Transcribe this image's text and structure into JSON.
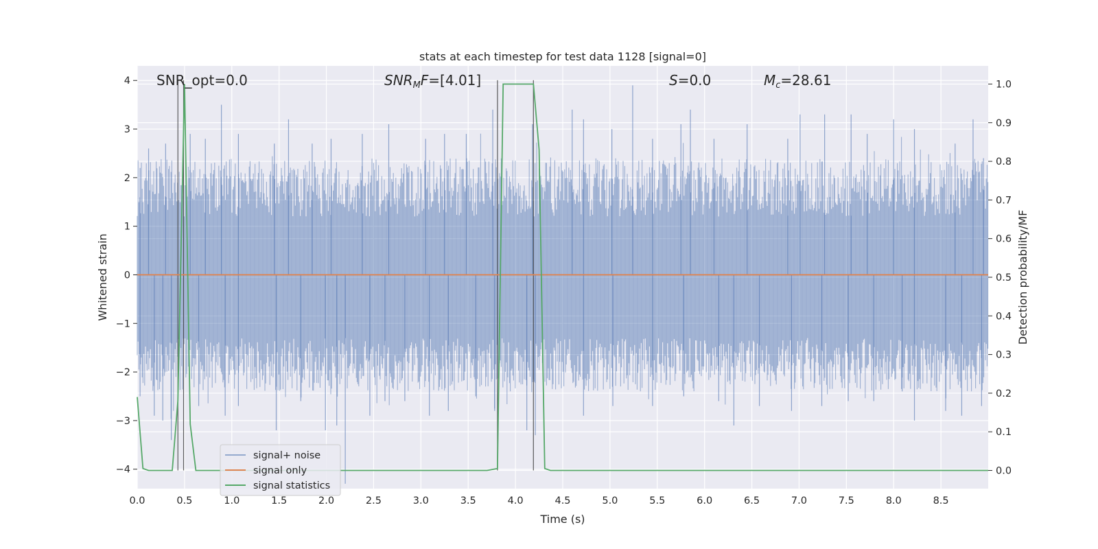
{
  "chart_data": {
    "type": "line",
    "title": "stats at each timestep for test data 1128 [signal=0]",
    "xlabel": "Time (s)",
    "ylabel": "Whitened strain",
    "y2label": "Detection probability/MF",
    "xlim": [
      0,
      9
    ],
    "ylim": [
      -4.4,
      4.3
    ],
    "y2lim": [
      -0.047,
      1.047
    ],
    "xticks": [
      "0.0",
      "0.5",
      "1.0",
      "1.5",
      "2.0",
      "2.5",
      "3.0",
      "3.5",
      "4.0",
      "4.5",
      "5.0",
      "5.5",
      "6.0",
      "6.5",
      "7.0",
      "7.5",
      "8.0",
      "8.5"
    ],
    "yticks": [
      "4",
      "3",
      "2",
      "1",
      "0",
      "−1",
      "−2",
      "−3",
      "−4"
    ],
    "y2ticks": [
      "1.0",
      "0.9",
      "0.8",
      "0.7",
      "0.6",
      "0.5",
      "0.4",
      "0.3",
      "0.2",
      "0.1",
      "0.0"
    ],
    "grid": true,
    "legend_position": "lower-left",
    "annotations": {
      "snr_opt": "SNR_opt=0.0",
      "snr_mf_prefix": "SNR",
      "snr_mf_sub": "M",
      "snr_mf_suffix": "F=[4.01]",
      "s_var": "S",
      "s_value": "=0.0",
      "mc_var": "M",
      "mc_sub": "c",
      "mc_value": "=28.61"
    },
    "series": [
      {
        "name": "signal+ noise",
        "color": "#4c72b0",
        "description_of_values": "whitened noise strain, approx. uniform band between -1.7 and 1.6 with spikes up to about 3.9 and down to about -4.3"
      },
      {
        "name": "signal only",
        "color": "#dd8452",
        "values_constant": 0
      },
      {
        "name": "signal statistics",
        "color": "#55a868",
        "axis": "right",
        "x": [
          0.0,
          0.06,
          0.12,
          0.2,
          0.28,
          0.37,
          0.43,
          0.5,
          0.56,
          0.62,
          0.7,
          1.0,
          2.0,
          3.0,
          3.7,
          3.81,
          3.87,
          3.95,
          4.05,
          4.15,
          4.19,
          4.25,
          4.31,
          4.37,
          4.5,
          5.0,
          6.0,
          7.0,
          8.0,
          9.0
        ],
        "y": [
          0.19,
          0.005,
          0.0,
          0.0,
          0.0,
          0.0,
          0.18,
          1.0,
          0.12,
          0.0,
          0.0,
          0.0,
          0.0,
          0.0,
          0.0,
          0.005,
          1.0,
          1.0,
          1.0,
          1.0,
          1.0,
          0.83,
          0.005,
          0.0,
          0.0,
          0.0,
          0.0,
          0.0,
          0.0,
          0.0
        ]
      }
    ],
    "vertical_markers_x": [
      0.43,
      0.49,
      3.81,
      4.19
    ],
    "noise_spikes": {
      "positive": [
        [
          0.03,
          2.2
        ],
        [
          0.12,
          2.6
        ],
        [
          0.3,
          2.7
        ],
        [
          0.56,
          2.9
        ],
        [
          0.72,
          2.8
        ],
        [
          0.89,
          3.5
        ],
        [
          1.07,
          2.9
        ],
        [
          1.45,
          2.7
        ],
        [
          1.6,
          3.2
        ],
        [
          1.85,
          2.7
        ],
        [
          2.05,
          2.8
        ],
        [
          2.38,
          2.9
        ],
        [
          2.66,
          3.1
        ],
        [
          3.05,
          2.8
        ],
        [
          3.25,
          2.9
        ],
        [
          3.48,
          2.9
        ],
        [
          3.76,
          3.4
        ],
        [
          4.18,
          3.1
        ],
        [
          4.6,
          3.4
        ],
        [
          4.72,
          3.2
        ],
        [
          5.02,
          3.0
        ],
        [
          5.24,
          3.9
        ],
        [
          5.45,
          2.8
        ],
        [
          5.75,
          3.1
        ],
        [
          5.85,
          3.4
        ],
        [
          6.1,
          2.8
        ],
        [
          6.45,
          3.1
        ],
        [
          6.88,
          2.8
        ],
        [
          7.01,
          3.3
        ],
        [
          7.27,
          3.3
        ],
        [
          7.55,
          3.3
        ],
        [
          7.72,
          2.9
        ],
        [
          8.0,
          3.2
        ],
        [
          8.22,
          3.0
        ],
        [
          8.65,
          2.7
        ],
        [
          8.84,
          3.2
        ],
        [
          8.95,
          2.4
        ]
      ],
      "negative": [
        [
          0.03,
          -2.5
        ],
        [
          0.18,
          -2.9
        ],
        [
          0.27,
          -3.0
        ],
        [
          0.36,
          -3.4
        ],
        [
          0.65,
          -2.7
        ],
        [
          0.93,
          -2.9
        ],
        [
          1.07,
          -2.7
        ],
        [
          1.47,
          -3.2
        ],
        [
          1.73,
          -2.6
        ],
        [
          1.99,
          -3.2
        ],
        [
          2.11,
          -3.1
        ],
        [
          2.2,
          -4.3
        ],
        [
          2.46,
          -2.9
        ],
        [
          2.62,
          -2.6
        ],
        [
          2.83,
          -2.6
        ],
        [
          3.09,
          -2.9
        ],
        [
          3.29,
          -2.8
        ],
        [
          3.58,
          -2.5
        ],
        [
          3.78,
          -2.8
        ],
        [
          4.12,
          -3.2
        ],
        [
          4.21,
          -3.3
        ],
        [
          4.72,
          -2.9
        ],
        [
          5.03,
          -2.7
        ],
        [
          5.45,
          -2.7
        ],
        [
          5.78,
          -2.5
        ],
        [
          6.15,
          -2.6
        ],
        [
          6.31,
          -3.1
        ],
        [
          6.58,
          -2.7
        ],
        [
          6.92,
          -2.8
        ],
        [
          7.24,
          -2.7
        ],
        [
          7.52,
          -2.6
        ],
        [
          7.79,
          -2.6
        ],
        [
          8.09,
          -2.4
        ],
        [
          8.22,
          -3.0
        ],
        [
          8.55,
          -2.8
        ],
        [
          8.72,
          -2.9
        ],
        [
          8.93,
          -2.7
        ]
      ]
    }
  }
}
